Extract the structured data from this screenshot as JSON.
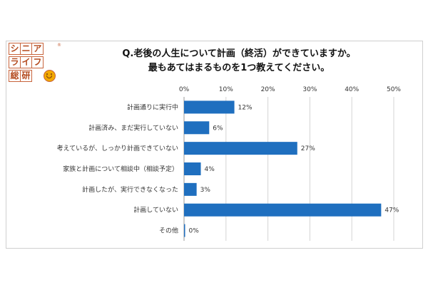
{
  "logo": {
    "cells": [
      "シ",
      "ニ",
      "ア",
      "ラ",
      "イ",
      "フ",
      "総",
      "研"
    ],
    "registered_mark": "®",
    "brand_color": "#c8643c",
    "smile_color": "#f2a900"
  },
  "chart_data": {
    "type": "bar",
    "orientation": "horizontal",
    "title_lines": [
      "Q.老後の人生について計画（終活）ができていますか。",
      "最もあてはまるものを1つ教えてください。"
    ],
    "categories": [
      "計画通りに実行中",
      "計画済み、まだ実行していない",
      "考えているが、しっかり計画できていない",
      "家族と計画について相談中（相談予定）",
      "計画したが、実行できなくなった",
      "計画していない",
      "その他"
    ],
    "values": [
      12,
      6,
      27,
      4,
      3,
      47,
      0
    ],
    "value_labels": [
      "12%",
      "6%",
      "27%",
      "4%",
      "3%",
      "47%",
      "0%"
    ],
    "xlim": [
      0,
      50
    ],
    "x_ticks": [
      "0%",
      "10%",
      "20%",
      "30%",
      "40%",
      "50%"
    ],
    "grid": true,
    "bar_color": "#1f6fbf",
    "legend": "none"
  }
}
